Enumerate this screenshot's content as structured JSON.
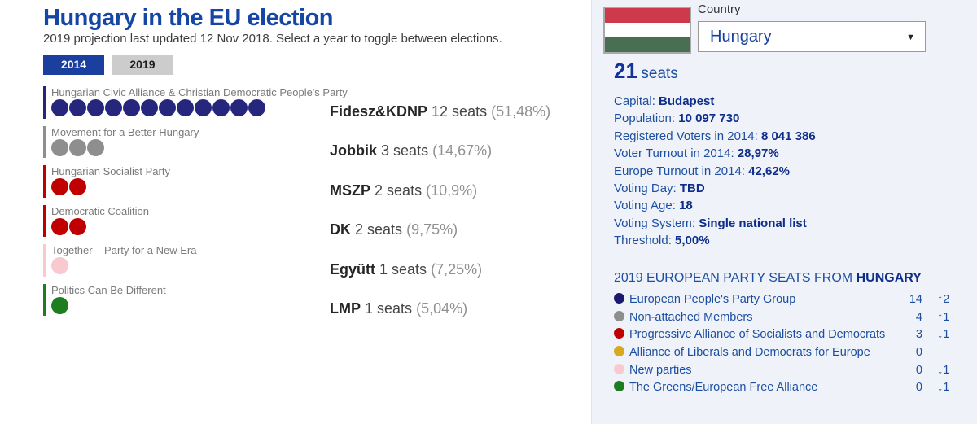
{
  "header": {
    "title": "Hungary in the EU election",
    "subtitle": "2019 projection last updated 12 Nov 2018. Select a year to toggle between elections.",
    "tabs": [
      {
        "label": "2014",
        "active": true
      },
      {
        "label": "2019",
        "active": false
      }
    ]
  },
  "parties": [
    {
      "name": "Hungarian Civic Alliance & Christian Democratic People's Party",
      "abbrev": "Fidesz&KDNP",
      "seats": 12,
      "seats_label": "12 seats",
      "pct": "(51,48%)",
      "color": "#26267d"
    },
    {
      "name": "Movement for a Better Hungary",
      "abbrev": "Jobbik",
      "seats": 3,
      "seats_label": "3 seats",
      "pct": "(14,67%)",
      "color": "#8e8e8e"
    },
    {
      "name": "Hungarian Socialist Party",
      "abbrev": "MSZP",
      "seats": 2,
      "seats_label": "2 seats",
      "pct": "(10,9%)",
      "color": "#c00000"
    },
    {
      "name": "Democratic Coalition",
      "abbrev": "DK",
      "seats": 2,
      "seats_label": "2 seats",
      "pct": "(9,75%)",
      "color": "#c00000"
    },
    {
      "name": "Together – Party for a New Era",
      "abbrev": "Együtt",
      "seats": 1,
      "seats_label": "1 seats",
      "pct": "(7,25%)",
      "color": "#f8c9cf"
    },
    {
      "name": "Politics Can Be Different",
      "abbrev": "LMP",
      "seats": 1,
      "seats_label": "1 seats",
      "pct": "(5,04%)",
      "color": "#1e7d1e"
    }
  ],
  "panel": {
    "country_label": "Country",
    "country_value": "Hungary",
    "dropdown_arrow": "▼",
    "total_seats": "21",
    "seats_word": "seats",
    "flag_colors": {
      "red": "#cd3a4b",
      "white": "#ffffff",
      "green": "#486f51"
    },
    "stats": [
      {
        "label": "Capital: ",
        "value": "Budapest"
      },
      {
        "label": "Population: ",
        "value": "10 097 730"
      },
      {
        "label": "Registered Voters in 2014: ",
        "value": "8 041 386"
      },
      {
        "label": "Voter Turnout in 2014: ",
        "value": "28,97%"
      },
      {
        "label": "Europe Turnout in 2014: ",
        "value": "42,62%"
      },
      {
        "label": "Voting Day: ",
        "value": "TBD"
      },
      {
        "label": "Voting Age: ",
        "value": "18"
      },
      {
        "label": "Voting System: ",
        "value": "Single national list"
      },
      {
        "label": "Threshold: ",
        "value": "5,00%"
      }
    ],
    "section_title_prefix": "2019 EUROPEAN PARTY SEATS FROM ",
    "section_title_country": "HUNGARY",
    "eu_parties": [
      {
        "name": "European People's Party Group",
        "color": "#1a1a6e",
        "seats": "14",
        "change": "↑2"
      },
      {
        "name": "Non-attached Members",
        "color": "#8e8e8e",
        "seats": "4",
        "change": "↑1"
      },
      {
        "name": "Progressive Alliance of Socialists and Democrats",
        "color": "#c00000",
        "seats": "3",
        "change": "↓1"
      },
      {
        "name": "Alliance of Liberals and Democrats for Europe",
        "color": "#d9a81c",
        "seats": "0",
        "change": ""
      },
      {
        "name": "New parties",
        "color": "#f8c9cf",
        "seats": "0",
        "change": "↓1"
      },
      {
        "name": "The Greens/European Free Alliance",
        "color": "#1e7d1e",
        "seats": "0",
        "change": "↓1"
      }
    ]
  },
  "colors": {
    "accent_blue": "#1a3f9e",
    "title_blue": "#1646a5",
    "panel_bg": "#eff2f8",
    "panel_text": "#1d4fa1",
    "panel_bold": "#0d2d8a"
  }
}
